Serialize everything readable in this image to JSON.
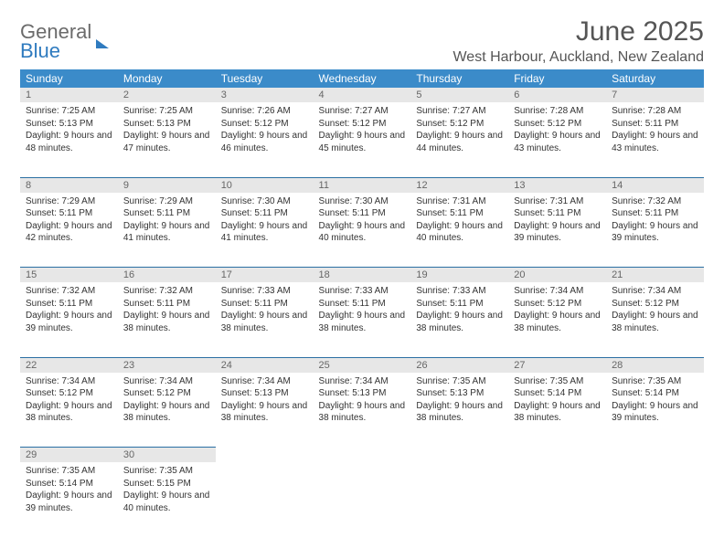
{
  "brand": {
    "line1": "General",
    "line2": "Blue"
  },
  "title": "June 2025",
  "location": "West Harbour, Auckland, New Zealand",
  "colors": {
    "header_bg": "#3b8bc9",
    "daynum_bg": "#e7e7e7",
    "row_border": "#2a6fa3",
    "text": "#333333",
    "title_text": "#555555"
  },
  "day_headers": [
    "Sunday",
    "Monday",
    "Tuesday",
    "Wednesday",
    "Thursday",
    "Friday",
    "Saturday"
  ],
  "weeks": [
    [
      {
        "n": "1",
        "sr": "7:25 AM",
        "ss": "5:13 PM",
        "dl": "9 hours and 48 minutes."
      },
      {
        "n": "2",
        "sr": "7:25 AM",
        "ss": "5:13 PM",
        "dl": "9 hours and 47 minutes."
      },
      {
        "n": "3",
        "sr": "7:26 AM",
        "ss": "5:12 PM",
        "dl": "9 hours and 46 minutes."
      },
      {
        "n": "4",
        "sr": "7:27 AM",
        "ss": "5:12 PM",
        "dl": "9 hours and 45 minutes."
      },
      {
        "n": "5",
        "sr": "7:27 AM",
        "ss": "5:12 PM",
        "dl": "9 hours and 44 minutes."
      },
      {
        "n": "6",
        "sr": "7:28 AM",
        "ss": "5:12 PM",
        "dl": "9 hours and 43 minutes."
      },
      {
        "n": "7",
        "sr": "7:28 AM",
        "ss": "5:11 PM",
        "dl": "9 hours and 43 minutes."
      }
    ],
    [
      {
        "n": "8",
        "sr": "7:29 AM",
        "ss": "5:11 PM",
        "dl": "9 hours and 42 minutes."
      },
      {
        "n": "9",
        "sr": "7:29 AM",
        "ss": "5:11 PM",
        "dl": "9 hours and 41 minutes."
      },
      {
        "n": "10",
        "sr": "7:30 AM",
        "ss": "5:11 PM",
        "dl": "9 hours and 41 minutes."
      },
      {
        "n": "11",
        "sr": "7:30 AM",
        "ss": "5:11 PM",
        "dl": "9 hours and 40 minutes."
      },
      {
        "n": "12",
        "sr": "7:31 AM",
        "ss": "5:11 PM",
        "dl": "9 hours and 40 minutes."
      },
      {
        "n": "13",
        "sr": "7:31 AM",
        "ss": "5:11 PM",
        "dl": "9 hours and 39 minutes."
      },
      {
        "n": "14",
        "sr": "7:32 AM",
        "ss": "5:11 PM",
        "dl": "9 hours and 39 minutes."
      }
    ],
    [
      {
        "n": "15",
        "sr": "7:32 AM",
        "ss": "5:11 PM",
        "dl": "9 hours and 39 minutes."
      },
      {
        "n": "16",
        "sr": "7:32 AM",
        "ss": "5:11 PM",
        "dl": "9 hours and 38 minutes."
      },
      {
        "n": "17",
        "sr": "7:33 AM",
        "ss": "5:11 PM",
        "dl": "9 hours and 38 minutes."
      },
      {
        "n": "18",
        "sr": "7:33 AM",
        "ss": "5:11 PM",
        "dl": "9 hours and 38 minutes."
      },
      {
        "n": "19",
        "sr": "7:33 AM",
        "ss": "5:11 PM",
        "dl": "9 hours and 38 minutes."
      },
      {
        "n": "20",
        "sr": "7:34 AM",
        "ss": "5:12 PM",
        "dl": "9 hours and 38 minutes."
      },
      {
        "n": "21",
        "sr": "7:34 AM",
        "ss": "5:12 PM",
        "dl": "9 hours and 38 minutes."
      }
    ],
    [
      {
        "n": "22",
        "sr": "7:34 AM",
        "ss": "5:12 PM",
        "dl": "9 hours and 38 minutes."
      },
      {
        "n": "23",
        "sr": "7:34 AM",
        "ss": "5:12 PM",
        "dl": "9 hours and 38 minutes."
      },
      {
        "n": "24",
        "sr": "7:34 AM",
        "ss": "5:13 PM",
        "dl": "9 hours and 38 minutes."
      },
      {
        "n": "25",
        "sr": "7:34 AM",
        "ss": "5:13 PM",
        "dl": "9 hours and 38 minutes."
      },
      {
        "n": "26",
        "sr": "7:35 AM",
        "ss": "5:13 PM",
        "dl": "9 hours and 38 minutes."
      },
      {
        "n": "27",
        "sr": "7:35 AM",
        "ss": "5:14 PM",
        "dl": "9 hours and 38 minutes."
      },
      {
        "n": "28",
        "sr": "7:35 AM",
        "ss": "5:14 PM",
        "dl": "9 hours and 39 minutes."
      }
    ],
    [
      {
        "n": "29",
        "sr": "7:35 AM",
        "ss": "5:14 PM",
        "dl": "9 hours and 39 minutes."
      },
      {
        "n": "30",
        "sr": "7:35 AM",
        "ss": "5:15 PM",
        "dl": "9 hours and 40 minutes."
      },
      null,
      null,
      null,
      null,
      null
    ]
  ],
  "labels": {
    "sunrise": "Sunrise: ",
    "sunset": "Sunset: ",
    "daylight": "Daylight: "
  }
}
